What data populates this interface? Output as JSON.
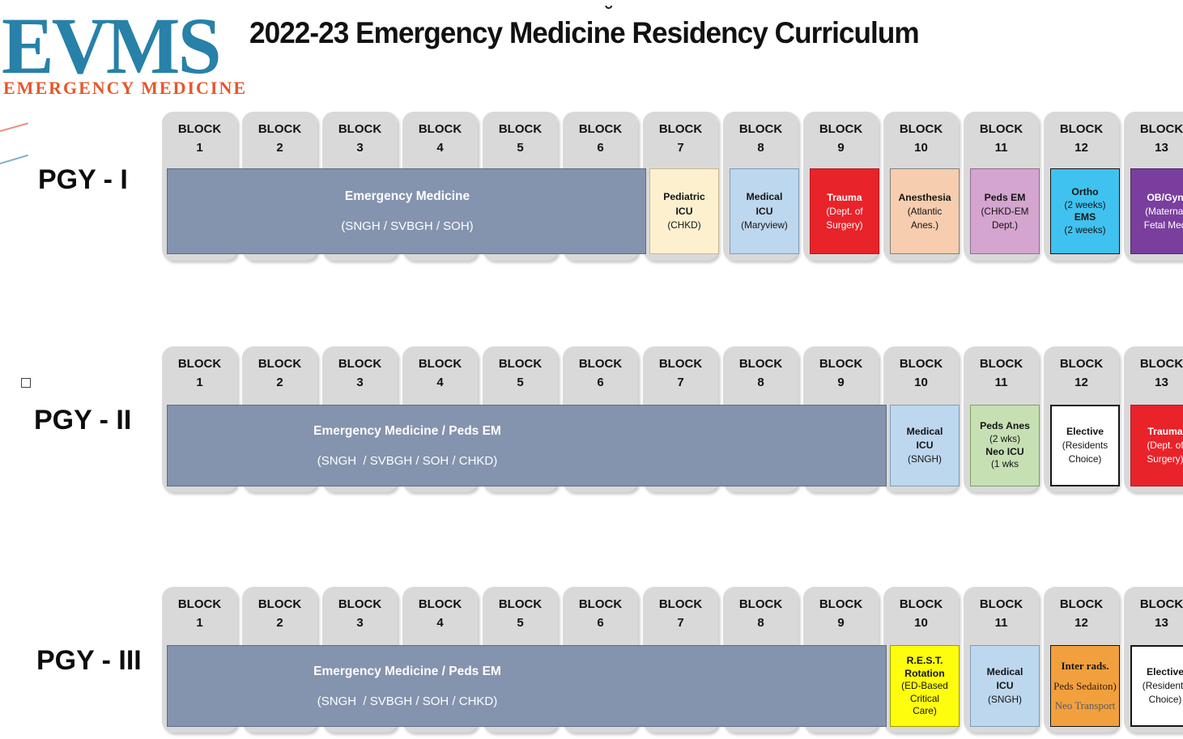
{
  "logo": {
    "acronym": "EVMS",
    "subtitle": "EMERGENCY MEDICINE",
    "acronym_color": "#2781A8",
    "subtitle_color": "#E4582B"
  },
  "decor": {
    "orange_line_color": "#E8927C",
    "blue_line_color": "#7FB3C8"
  },
  "title": "2022-23 Emergency Medicine Residency Curriculum",
  "accent_mark": "˘",
  "block_label": "BLOCK",
  "block_numbers": [
    "1",
    "2",
    "3",
    "4",
    "5",
    "6",
    "7",
    "8",
    "9",
    "10",
    "11",
    "12",
    "13"
  ],
  "rows": [
    {
      "label": "PGY - I",
      "rotations": [
        {
          "name": "emergency-medicine",
          "style": "em",
          "start": 1,
          "end": 6,
          "bg": "#8493AE",
          "border": "#5D6C85",
          "bw": 1.5,
          "color": "#FFFFFF",
          "lines": [
            {
              "t": "Emergency Medicine",
              "b": true
            },
            {
              "t": "(SNGH / SVBGH / SOH)",
              "b": false
            }
          ]
        },
        {
          "name": "pediatric-icu-chkd",
          "style": "plain",
          "start": 7,
          "end": 7,
          "bg": "#FCF0CF",
          "border": "#C8B88E",
          "lines": [
            {
              "t": "Pediatric",
              "b": true
            },
            {
              "t": "ICU",
              "b": true
            },
            {
              "t": "(CHKD)",
              "b": false
            }
          ]
        },
        {
          "name": "medical-icu-maryview",
          "style": "plain",
          "start": 8,
          "end": 8,
          "bg": "#BDD7EE",
          "border": "#7F9CB8",
          "lines": [
            {
              "t": "Medical",
              "b": true
            },
            {
              "t": "ICU",
              "b": true
            },
            {
              "t": "(Maryview)",
              "b": false
            }
          ]
        },
        {
          "name": "trauma-dept-of-surgery",
          "style": "plain",
          "start": 9,
          "end": 9,
          "bg": "#E8232A",
          "border": "#B01B20",
          "color": "#FFFFFF",
          "lines": [
            {
              "t": "Trauma",
              "b": true
            },
            {
              "t": "(Dept. of",
              "b": false
            },
            {
              "t": "Surgery)",
              "b": false
            }
          ]
        },
        {
          "name": "anesthesia-atlantic",
          "style": "plain",
          "start": 10,
          "end": 10,
          "bg": "#F6CDAE",
          "border": "#808080",
          "lines": [
            {
              "t": "Anesthesia",
              "b": true
            },
            {
              "t": "(Atlantic",
              "b": false
            },
            {
              "t": "Anes.)",
              "b": false
            }
          ]
        },
        {
          "name": "peds-em-chkd",
          "style": "plain",
          "start": 11,
          "end": 11,
          "bg": "#D4A5CE",
          "border": "#8F6D92",
          "lines": [
            {
              "t": "Peds EM",
              "b": true
            },
            {
              "t": "(CHKD-EM",
              "b": false
            },
            {
              "t": "Dept.)",
              "b": false
            }
          ]
        },
        {
          "name": "ortho-ems",
          "style": "compact",
          "start": 12,
          "end": 12,
          "bg": "#3FC2EF",
          "border": "#141414",
          "bw": 1.5,
          "lines": [
            {
              "t": "Ortho",
              "b": true
            },
            {
              "t": "(2 weeks)",
              "b": false
            },
            {
              "t": "EMS",
              "b": true
            },
            {
              "t": "(2 weeks)",
              "b": false
            }
          ]
        },
        {
          "name": "ob-gyn-maternal-fetal",
          "style": "plain",
          "start": 13,
          "end": 13,
          "bg": "#7A3F9E",
          "border": "#4F2968",
          "color": "#FFFFFF",
          "lines": [
            {
              "t": "OB/Gyn",
              "b": true
            },
            {
              "t": "(Maternal",
              "b": false
            },
            {
              "t": "Fetal Med",
              "b": false
            }
          ]
        }
      ]
    },
    {
      "label": "PGY - II",
      "rotations": [
        {
          "name": "emergency-medicine-peds-em",
          "style": "em",
          "start": 1,
          "end": 9,
          "bg": "#8493AE",
          "border": "#5D6C85",
          "bw": 1.5,
          "color": "#FFFFFF",
          "lines": [
            {
              "t": "Emergency Medicine / Peds EM",
              "b": true
            },
            {
              "t": "(SNGH  / SVBGH / SOH / CHKD)",
              "b": false
            }
          ]
        },
        {
          "name": "medical-icu-sngh",
          "style": "plain",
          "start": 10,
          "end": 10,
          "bg": "#BDD7EE",
          "border": "#7F9CB8",
          "lines": [
            {
              "t": "Medical",
              "b": true
            },
            {
              "t": "ICU",
              "b": true
            },
            {
              "t": "(SNGH)",
              "b": false
            }
          ]
        },
        {
          "name": "peds-anes-neo-icu",
          "style": "compact",
          "start": 11,
          "end": 11,
          "bg": "#C6E0B4",
          "border": "#7FA05F",
          "lines": [
            {
              "t": "Peds Anes",
              "b": true
            },
            {
              "t": "(2 wks)",
              "b": false
            },
            {
              "t": "Neo ICU",
              "b": true
            },
            {
              "t": "(1 wks",
              "b": false
            }
          ]
        },
        {
          "name": "elective-residents-choice",
          "style": "plain",
          "start": 12,
          "end": 12,
          "bg": "#FFFFFF",
          "border": "#141414",
          "bw": 2,
          "lines": [
            {
              "t": "Elective",
              "b": true
            },
            {
              "t": "(Residents",
              "b": false
            },
            {
              "t": "Choice)",
              "b": false
            }
          ]
        },
        {
          "name": "trauma-dept-of-surgery",
          "style": "plain",
          "start": 13,
          "end": 13,
          "bg": "#E8232A",
          "border": "#B01B20",
          "color": "#FFFFFF",
          "lines": [
            {
              "t": "Trauma",
              "b": true
            },
            {
              "t": "(Dept. of",
              "b": false
            },
            {
              "t": "Surgery)",
              "b": false
            }
          ]
        }
      ]
    },
    {
      "label": "PGY - III",
      "rotations": [
        {
          "name": "emergency-medicine-peds-em",
          "style": "em",
          "start": 1,
          "end": 9,
          "bg": "#8493AE",
          "border": "#5D6C85",
          "bw": 1.5,
          "color": "#FFFFFF",
          "lines": [
            {
              "t": "Emergency Medicine / Peds EM",
              "b": true
            },
            {
              "t": "(SNGH  / SVBGH / SOH / CHKD)",
              "b": false
            }
          ]
        },
        {
          "name": "rest-rotation-ed-critical-care",
          "style": "compact",
          "start": 10,
          "end": 10,
          "bg": "#FDFD0D",
          "border": "#9C9C00",
          "lines": [
            {
              "t": "R.E.S.T.",
              "b": true
            },
            {
              "t": "Rotation",
              "b": true
            },
            {
              "t": "(ED-Based",
              "b": false
            },
            {
              "t": "Critical",
              "b": false
            },
            {
              "t": "Care)",
              "b": false
            }
          ]
        },
        {
          "name": "medical-icu-sngh",
          "style": "plain",
          "start": 11,
          "end": 11,
          "bg": "#BDD7EE",
          "border": "#7F9CB8",
          "lines": [
            {
              "t": "Medical",
              "b": true
            },
            {
              "t": "ICU",
              "b": true
            },
            {
              "t": "(SNGH)",
              "b": false
            }
          ]
        },
        {
          "name": "inter-rads-peds-sedation-neo-transport",
          "style": "serif",
          "start": 12,
          "end": 12,
          "bg": "#F2A03D",
          "border": "#141414",
          "bw": 1.5,
          "lines": [
            {
              "t": "Inter rads.",
              "b": true,
              "c": "#161616"
            },
            {
              "t": "Peds Sedaiton)",
              "b": false,
              "c": "#2E1A12"
            },
            {
              "t": "Neo Transport",
              "b": false,
              "c": "#555B61"
            }
          ]
        },
        {
          "name": "elective-residents-choice",
          "style": "plain",
          "start": 13,
          "end": 13,
          "bg": "#FFFFFF",
          "border": "#141414",
          "bw": 2,
          "lines": [
            {
              "t": "Elective",
              "b": true
            },
            {
              "t": "(Residents",
              "b": false
            },
            {
              "t": "Choice)",
              "b": false
            }
          ]
        }
      ]
    }
  ]
}
